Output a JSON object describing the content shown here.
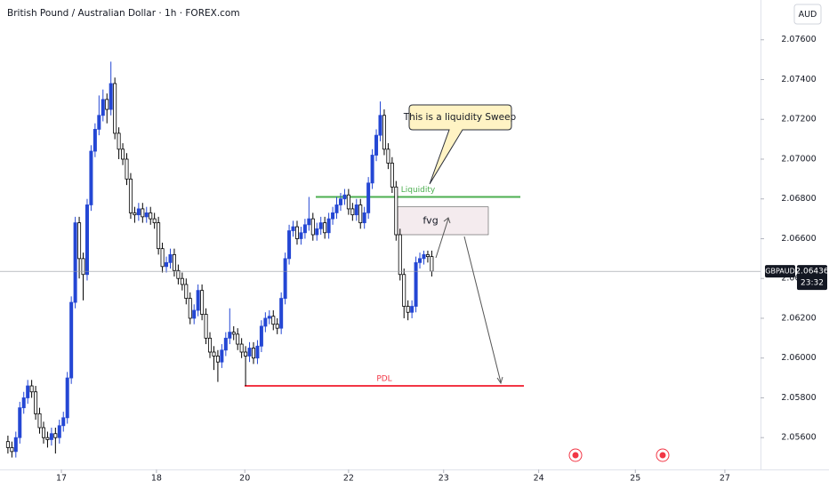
{
  "chart_data": {
    "type": "candlestick",
    "title": "British Pound / Australian Dollar · 1h · FOREX.com",
    "currency": "AUD",
    "symbol": "GBPAUD",
    "last_price": 2.06436,
    "countdown": "23:32",
    "up_color": "#2447d4",
    "down_color": "#000000",
    "ylim": [
      2.0544,
      2.078
    ],
    "yticks": [
      {
        "value": 2.056,
        "label": "2.05600"
      },
      {
        "value": 2.058,
        "label": "2.05800"
      },
      {
        "value": 2.06,
        "label": "2.06000"
      },
      {
        "value": 2.062,
        "label": "2.06200"
      },
      {
        "value": 2.064,
        "label": "2.06400"
      },
      {
        "value": 2.066,
        "label": "2.06600"
      },
      {
        "value": 2.068,
        "label": "2.06800"
      },
      {
        "value": 2.07,
        "label": "2.07000"
      },
      {
        "value": 2.072,
        "label": "2.07200"
      },
      {
        "value": 2.074,
        "label": "2.07400"
      },
      {
        "value": 2.076,
        "label": "2.07600"
      }
    ],
    "xlim": [
      -2,
      190
    ],
    "xticks": [
      {
        "value": 13.5,
        "label": "17"
      },
      {
        "value": 37.5,
        "label": "18"
      },
      {
        "value": 59.8,
        "label": "20"
      },
      {
        "value": 86,
        "label": "22"
      },
      {
        "value": 110,
        "label": "23"
      },
      {
        "value": 134,
        "label": "24"
      },
      {
        "value": 158.4,
        "label": "25"
      },
      {
        "value": 181,
        "label": "27"
      }
    ],
    "open": [
      2.0558,
      2.0555,
      2.0553,
      2.056,
      2.0575,
      2.058,
      2.0586,
      2.0583,
      2.0572,
      2.0565,
      2.056,
      2.0559,
      2.0562,
      2.056,
      2.0566,
      2.057,
      2.059,
      2.0628,
      2.0668,
      2.065,
      2.0642,
      2.0677,
      2.0704,
      2.0715,
      2.0722,
      2.073,
      2.0725,
      2.0738,
      2.0713,
      2.0705,
      2.07,
      2.069,
      2.0673,
      2.0672,
      2.0675,
      2.0671,
      2.0673,
      2.067,
      2.0668,
      2.0655,
      2.0646,
      2.0648,
      2.0652,
      2.0644,
      2.064,
      2.0637,
      2.063,
      2.062,
      2.0624,
      2.0634,
      2.0622,
      2.061,
      2.0603,
      2.0601,
      2.0598,
      2.0604,
      2.061,
      2.0613,
      2.0612,
      2.0607,
      2.0603,
      2.0601,
      2.0605,
      2.06,
      2.0606,
      2.0616,
      2.062,
      2.0621,
      2.0617,
      2.0615,
      2.063,
      2.065,
      2.0664,
      2.0666,
      2.066,
      2.0663,
      2.0667,
      2.067,
      2.0662,
      2.0665,
      2.0668,
      2.0663,
      2.067,
      2.0673,
      2.0677,
      2.068,
      2.0682,
      2.0675,
      2.0672,
      2.0677,
      2.0668,
      2.0673,
      2.0688,
      2.0702,
      2.0712,
      2.0722,
      2.0705,
      2.0698,
      2.0686,
      2.0662,
      2.0642,
      2.0626,
      2.0623,
      2.0626,
      2.0648,
      2.065,
      2.0652,
      2.0651
    ],
    "high": [
      2.0561,
      2.0558,
      2.0563,
      2.0578,
      2.0583,
      2.0589,
      2.0589,
      2.0586,
      2.0575,
      2.0568,
      2.0563,
      2.0565,
      2.0565,
      2.0569,
      2.0573,
      2.0593,
      2.0631,
      2.0671,
      2.0671,
      2.0653,
      2.068,
      2.0707,
      2.0718,
      2.0732,
      2.0735,
      2.0733,
      2.0749,
      2.0741,
      2.0716,
      2.0708,
      2.0703,
      2.0693,
      2.0676,
      2.0678,
      2.0678,
      2.0676,
      2.0676,
      2.0673,
      2.0671,
      2.0658,
      2.0651,
      2.0655,
      2.0655,
      2.0647,
      2.0643,
      2.064,
      2.0633,
      2.0627,
      2.0637,
      2.0637,
      2.0625,
      2.0613,
      2.0606,
      2.0604,
      2.0607,
      2.0613,
      2.0625,
      2.0616,
      2.0615,
      2.061,
      2.0606,
      2.0608,
      2.0608,
      2.0609,
      2.0619,
      2.0623,
      2.0624,
      2.0624,
      2.062,
      2.0633,
      2.0653,
      2.0667,
      2.0669,
      2.0669,
      2.0666,
      2.067,
      2.0681,
      2.0673,
      2.0668,
      2.0671,
      2.0671,
      2.0673,
      2.0676,
      2.0681,
      2.0683,
      2.0685,
      2.0685,
      2.0678,
      2.068,
      2.068,
      2.0676,
      2.0691,
      2.0705,
      2.0715,
      2.0729,
      2.0725,
      2.0708,
      2.0701,
      2.0689,
      2.0665,
      2.0645,
      2.0629,
      2.0629,
      2.0651,
      2.0653,
      2.0654,
      2.0654,
      2.0654
    ],
    "low": [
      2.0552,
      2.055,
      2.055,
      2.0557,
      2.0572,
      2.0577,
      2.058,
      2.0569,
      2.0562,
      2.0557,
      2.0555,
      2.0556,
      2.0552,
      2.0557,
      2.0563,
      2.0567,
      2.0587,
      2.0625,
      2.064,
      2.0629,
      2.0639,
      2.0674,
      2.0701,
      2.0712,
      2.0719,
      2.0718,
      2.0722,
      2.071,
      2.07,
      2.0697,
      2.0687,
      2.067,
      2.0668,
      2.0669,
      2.0668,
      2.0668,
      2.0667,
      2.0665,
      2.0652,
      2.0643,
      2.0643,
      2.0645,
      2.0641,
      2.0637,
      2.0634,
      2.0627,
      2.0617,
      2.0617,
      2.0621,
      2.0619,
      2.0607,
      2.06,
      2.0594,
      2.0588,
      2.0595,
      2.0601,
      2.0607,
      2.0609,
      2.0604,
      2.06,
      2.0586,
      2.0598,
      2.0597,
      2.0597,
      2.0603,
      2.0613,
      2.0617,
      2.0614,
      2.0612,
      2.0612,
      2.0627,
      2.0647,
      2.0661,
      2.0657,
      2.0657,
      2.066,
      2.0664,
      2.0659,
      2.0659,
      2.0662,
      2.066,
      2.066,
      2.0667,
      2.067,
      2.0674,
      2.0677,
      2.0672,
      2.0669,
      2.0669,
      2.0665,
      2.0665,
      2.067,
      2.0685,
      2.0699,
      2.0709,
      2.0702,
      2.0695,
      2.0683,
      2.0659,
      2.0639,
      2.062,
      2.0619,
      2.062,
      2.0623,
      2.0645,
      2.0647,
      2.0648,
      2.0641
    ],
    "close": [
      2.0555,
      2.0553,
      2.056,
      2.0575,
      2.058,
      2.0586,
      2.0583,
      2.0572,
      2.0565,
      2.056,
      2.0559,
      2.0562,
      2.056,
      2.0566,
      2.057,
      2.059,
      2.0628,
      2.0668,
      2.065,
      2.0642,
      2.0677,
      2.0704,
      2.0715,
      2.0722,
      2.073,
      2.0725,
      2.0738,
      2.0713,
      2.0705,
      2.07,
      2.069,
      2.0673,
      2.0672,
      2.0675,
      2.0671,
      2.0673,
      2.067,
      2.0668,
      2.0655,
      2.0646,
      2.0648,
      2.0652,
      2.0644,
      2.064,
      2.0637,
      2.063,
      2.062,
      2.0624,
      2.0634,
      2.0622,
      2.061,
      2.0603,
      2.0601,
      2.0598,
      2.0604,
      2.061,
      2.0613,
      2.0612,
      2.0607,
      2.0603,
      2.0601,
      2.0605,
      2.06,
      2.0606,
      2.0616,
      2.062,
      2.0621,
      2.0617,
      2.0615,
      2.063,
      2.065,
      2.0664,
      2.0666,
      2.066,
      2.0663,
      2.0667,
      2.067,
      2.0662,
      2.0665,
      2.0668,
      2.0663,
      2.067,
      2.0673,
      2.0677,
      2.068,
      2.0682,
      2.0675,
      2.0672,
      2.0677,
      2.0668,
      2.0673,
      2.0688,
      2.0702,
      2.0712,
      2.0722,
      2.0705,
      2.0698,
      2.0686,
      2.0662,
      2.0642,
      2.0626,
      2.0623,
      2.0626,
      2.0648,
      2.065,
      2.0652,
      2.0651,
      2.06436
    ],
    "levels": [
      {
        "label": "Liquidity",
        "price": 2.0681,
        "color": "#4caf50"
      },
      {
        "label": "PDL",
        "price": 2.0586,
        "color": "#f23645"
      }
    ],
    "fvg": {
      "label": "fvg",
      "top": 2.0676,
      "bottom": 2.0662
    },
    "callout": "This is a liquidity Sweep"
  }
}
